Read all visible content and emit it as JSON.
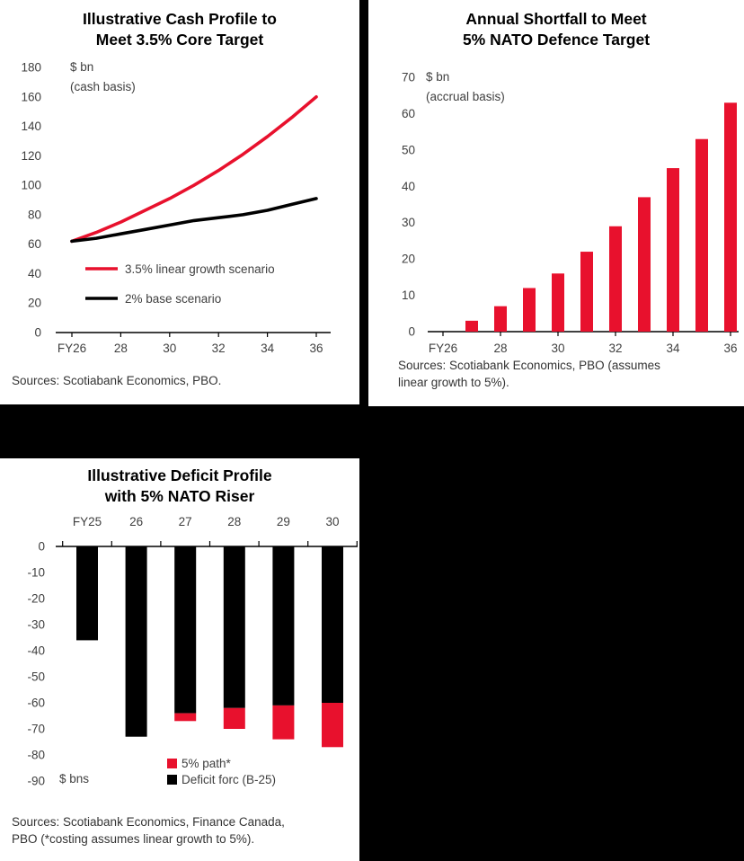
{
  "page": {
    "background": "#000000"
  },
  "colors": {
    "accent_red": "#e8112d",
    "series_black": "#000000"
  },
  "chart_data": [
    {
      "type": "line",
      "title_lines": [
        "Illustrative Cash Profile to",
        "Meet 3.5% Core Target"
      ],
      "unit": "$ bn",
      "basis": "(cash basis)",
      "x": [
        "FY26",
        "FY27",
        "FY28",
        "FY29",
        "FY30",
        "FY31",
        "FY32",
        "FY33",
        "FY34",
        "FY35",
        "FY36"
      ],
      "x_ticks": [
        "FY26",
        "28",
        "30",
        "32",
        "34",
        "36"
      ],
      "ylim": [
        0,
        180
      ],
      "yticks": [
        0,
        20,
        40,
        60,
        80,
        100,
        120,
        140,
        160,
        180
      ],
      "grid": false,
      "legend_position": "inside-lower-left",
      "series": [
        {
          "name": "3.5% linear growth scenario",
          "color": "#e8112d",
          "values": [
            62,
            68,
            75,
            83,
            91,
            100,
            110,
            121,
            133,
            146,
            160
          ]
        },
        {
          "name": "2% base scenario",
          "color": "#000000",
          "values": [
            62,
            64,
            67,
            70,
            73,
            76,
            78,
            80,
            83,
            87,
            91
          ]
        }
      ],
      "sources": "Sources: Scotiabank Economics, PBO."
    },
    {
      "type": "bar",
      "title_lines": [
        "Annual Shortfall to Meet",
        "5% NATO Defence Target"
      ],
      "unit": "$ bn",
      "basis": "(accrual basis)",
      "x": [
        "FY26",
        "FY27",
        "FY28",
        "FY29",
        "FY30",
        "FY31",
        "FY32",
        "FY33",
        "FY34",
        "FY35",
        "FY36"
      ],
      "x_ticks": [
        "FY26",
        "28",
        "30",
        "32",
        "34",
        "36"
      ],
      "ylim": [
        0,
        70
      ],
      "yticks": [
        0,
        10,
        20,
        30,
        40,
        50,
        60,
        70
      ],
      "grid": false,
      "bar_color": "#e8112d",
      "values": [
        0,
        3,
        7,
        12,
        16,
        22,
        29,
        37,
        45,
        53,
        63
      ],
      "sources_lines": [
        "Sources: Scotiabank Economics, PBO (assumes",
        "linear growth to 5%)."
      ]
    },
    {
      "type": "stacked-bar",
      "title_lines": [
        "Illustrative Deficit Profile",
        "with 5% NATO Riser"
      ],
      "unit": "$ bns",
      "x": [
        "FY25",
        "26",
        "27",
        "28",
        "29",
        "30"
      ],
      "ylim": [
        -90,
        0
      ],
      "yticks": [
        0,
        -10,
        -20,
        -30,
        -40,
        -50,
        -60,
        -70,
        -80,
        -90
      ],
      "grid": false,
      "axis_position": "top",
      "legend_position": "inside-bottom",
      "series": [
        {
          "name": "5% path*",
          "color": "#e8112d",
          "values": [
            0,
            0,
            -3,
            -8,
            -13,
            -17
          ]
        },
        {
          "name": "Deficit forc (B-25)",
          "color": "#000000",
          "values": [
            -36,
            -73,
            -64,
            -62,
            -61,
            -60
          ]
        }
      ],
      "totals": [
        -36,
        -73,
        -67,
        -70,
        -74,
        -77
      ],
      "sources_lines": [
        "Sources: Scotiabank Economics, Finance Canada,",
        "PBO (*costing assumes linear growth to 5%)."
      ]
    }
  ]
}
